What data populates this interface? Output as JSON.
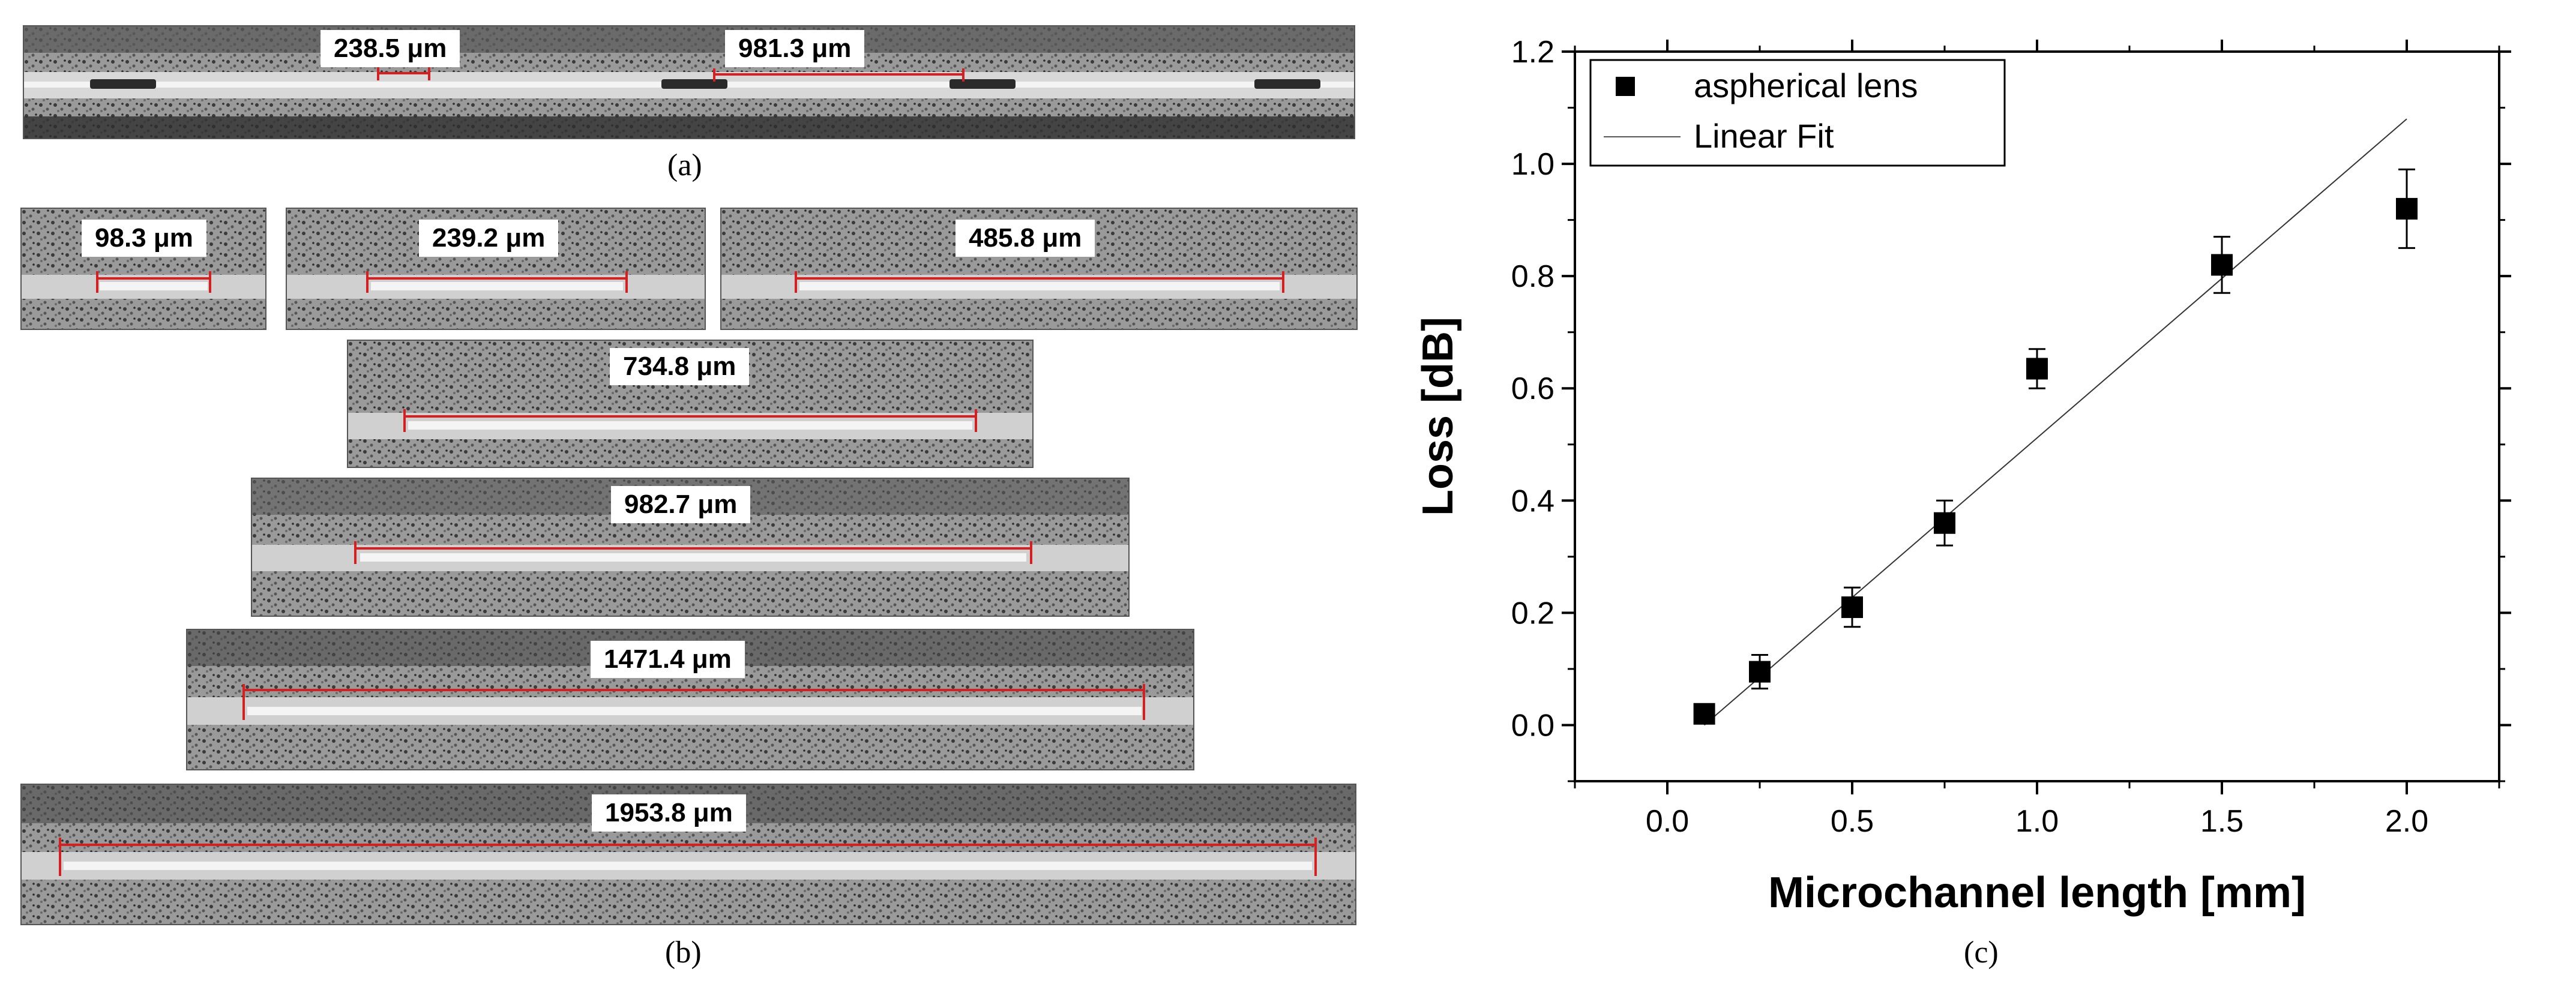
{
  "panels": {
    "a": {
      "caption": "(a)",
      "labels": [
        "238.5 μm",
        "981.3 μm"
      ]
    },
    "b": {
      "caption": "(b)",
      "labels": [
        "98.3 μm",
        "239.2 μm",
        "485.8 μm",
        "734.8 μm",
        "982.7 μm",
        "1471.4 μm",
        "1953.8 μm"
      ]
    },
    "c": {
      "caption": "(c)"
    }
  },
  "colors": {
    "measure_line": "#d42020",
    "channel": "#f4f4f4",
    "background_gray": "#8a8a8a",
    "marker": "#000000"
  },
  "chart_data": {
    "type": "scatter",
    "xlabel": "Microchannel length [mm]",
    "ylabel": "Loss [dB]",
    "xlim": [
      -0.25,
      2.25
    ],
    "ylim": [
      -0.1,
      1.2
    ],
    "xticks": [
      "0.0",
      "0.5",
      "1.0",
      "1.5",
      "2.0"
    ],
    "yticks": [
      "0.0",
      "0.2",
      "0.4",
      "0.6",
      "0.8",
      "1.0",
      "1.2"
    ],
    "legend_position": "top-left",
    "series": [
      {
        "name": "aspherical lens",
        "x": [
          0.1,
          0.25,
          0.5,
          0.75,
          1.0,
          1.5,
          2.0
        ],
        "y": [
          0.02,
          0.095,
          0.21,
          0.36,
          0.635,
          0.82,
          0.92
        ],
        "err": [
          0.015,
          0.03,
          0.035,
          0.04,
          0.035,
          0.05,
          0.07
        ]
      },
      {
        "name": "Linear Fit",
        "x": [
          0.1,
          2.0
        ],
        "y": [
          0.0,
          1.08
        ]
      }
    ]
  }
}
